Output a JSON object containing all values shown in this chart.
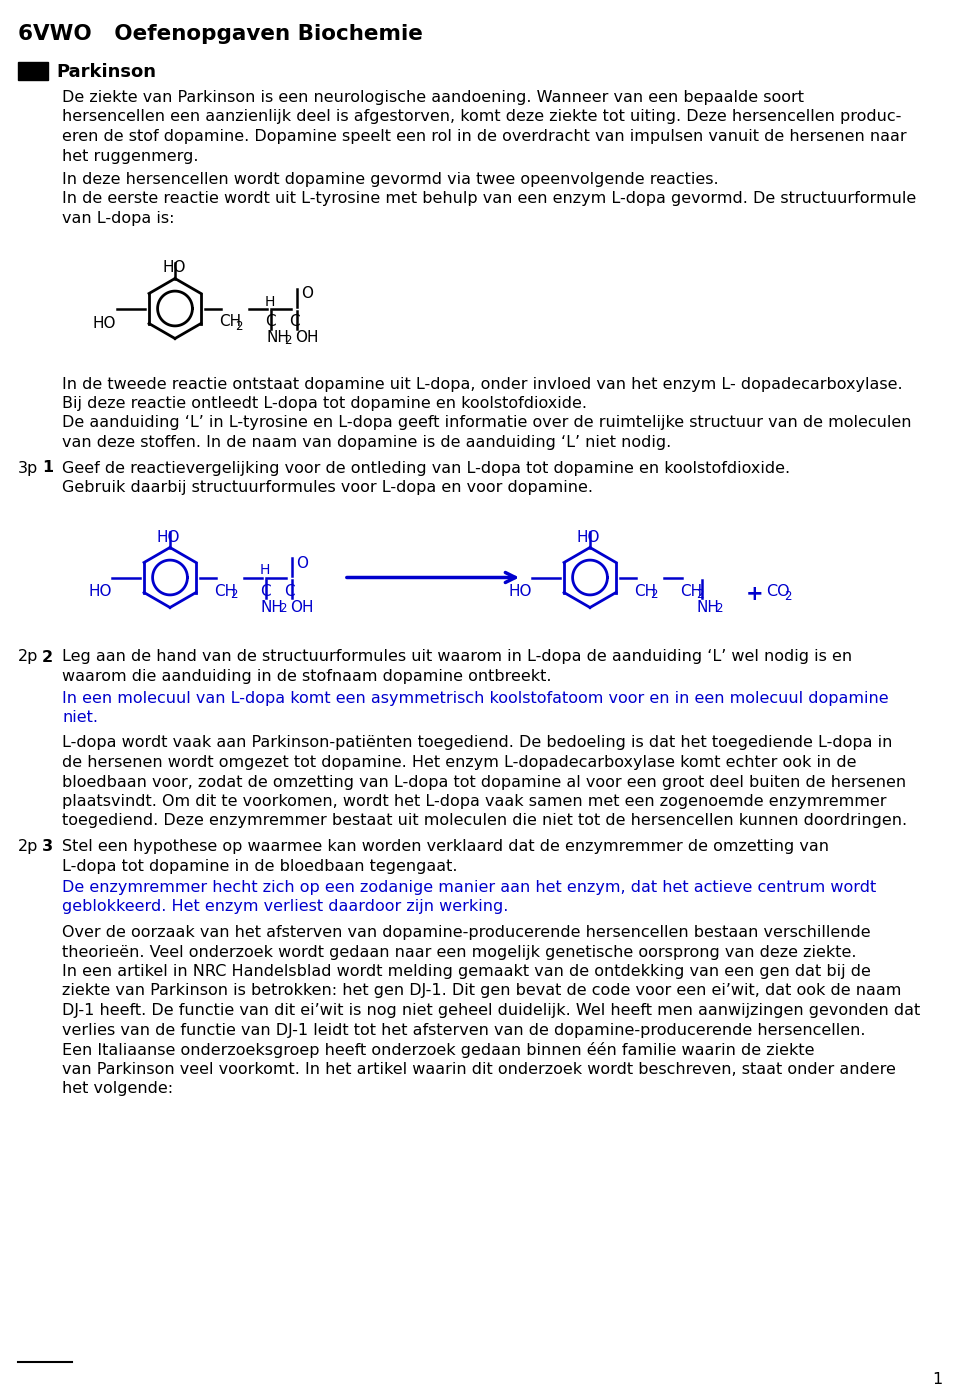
{
  "title": "6VWO   Oefenopgaven Biochemie",
  "section_title": "Parkinson",
  "body_color": "#000000",
  "blue_color": "#0000CD",
  "background": "#ffffff",
  "page_number": "1",
  "intro_para1_lines": [
    "De ziekte van Parkinson is een neurologische aandoening. Wanneer van een bepaalde soort",
    "hersencellen een aanzienlijk deel is afgestorven, komt deze ziekte tot uiting. Deze hersencellen produc-",
    "eren de stof dopamine. Dopamine speelt een rol in de overdracht van impulsen vanuit de hersenen naar",
    "het ruggenmerg."
  ],
  "intro_para2_lines": [
    "In deze hersencellen wordt dopamine gevormd via twee opeenvolgende reacties.",
    "In de eerste reactie wordt uit L-tyrosine met behulp van een enzym L-dopa gevormd. De structuurformule",
    "van L-dopa is:"
  ],
  "intro_para3_lines": [
    "In de tweede reactie ontstaat dopamine uit L-dopa, onder invloed van het enzym L- dopadecarboxylase.",
    "Bij deze reactie ontleedt L-dopa tot dopamine en koolstofdioxide.",
    "De aanduiding ‘L’ in L-tyrosine en L-dopa geeft informatie over de ruimtelijke structuur van de moleculen",
    "van deze stoffen. In de naam van dopamine is de aanduiding ‘L’ niet nodig."
  ],
  "q1_text_line1": "Geef de reactievergelijking voor de ontleding van L-dopa tot dopamine en koolstofdioxide.",
  "q1_text_line2": "Gebruik daarbij structuurformules voor L-dopa en voor dopamine.",
  "q2_text_line1": "Leg aan de hand van de structuurformules uit waarom in L-dopa de aanduiding ‘L’ wel nodig is en",
  "q2_text_line2": "waarom die aanduiding in de stofnaam dopamine ontbreekt.",
  "q2_answer_lines": [
    "In een molecuul van L-dopa komt een asymmetrisch koolstofatoom voor en in een molecuul dopamine",
    "niet."
  ],
  "q2_extra_lines": [
    "L-dopa wordt vaak aan Parkinson-patiënten toegediend. De bedoeling is dat het toegediende L-dopa in",
    "de hersenen wordt omgezet tot dopamine. Het enzym L-dopadecarboxylase komt echter ook in de",
    "bloedbaan voor, zodat de omzetting van L-dopa tot dopamine al voor een groot deel buiten de hersenen",
    "plaatsvindt. Om dit te voorkomen, wordt het L-dopa vaak samen met een zogenoemde enzymremmer",
    "toegediend. Deze enzymremmer bestaat uit moleculen die niet tot de hersencellen kunnen doordringen."
  ],
  "q3_text_line1": "Stel een hypothese op waarmee kan worden verklaard dat de enzymremmer de omzetting van",
  "q3_text_line2": "L-dopa tot dopamine in de bloedbaan tegengaat.",
  "q3_answer_lines": [
    "De enzymremmer hecht zich op een zodanige manier aan het enzym, dat het actieve centrum wordt",
    "geblokkeerd. Het enzym verliest daardoor zijn werking."
  ],
  "q3_extra_lines": [
    "Over de oorzaak van het afsterven van dopamine-producerende hersencellen bestaan verschillende",
    "theorieën. Veel onderzoek wordt gedaan naar een mogelijk genetische oorsprong van deze ziekte.",
    "In een artikel in NRC Handelsblad wordt melding gemaakt van de ontdekking van een gen dat bij de",
    "ziekte van Parkinson is betrokken: het gen DJ-1. Dit gen bevat de code voor een eiʼwit, dat ook de naam",
    "DJ-1 heeft. De functie van dit eiʼwit is nog niet geheel duidelijk. Wel heeft men aanwijzingen gevonden dat",
    "verlies van de functie van DJ-1 leidt tot het afsterven van de dopamine-producerende hersencellen.",
    "Een Italiaanse onderzoeksgroep heeft onderzoek gedaan binnen één familie waarin de ziekte",
    "van Parkinson veel voorkomt. In het artikel waarin dit onderzoek wordt beschreven, staat onder andere",
    "het volgende:"
  ]
}
